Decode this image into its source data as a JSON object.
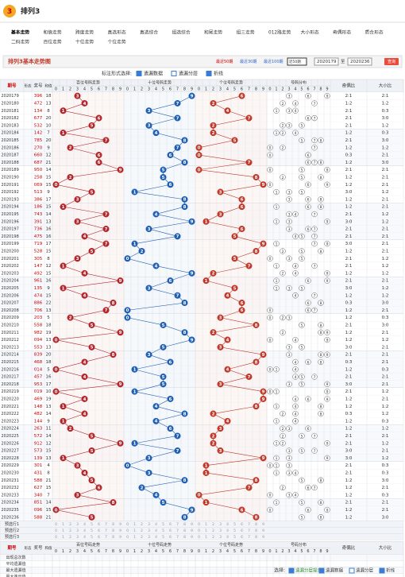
{
  "header": {
    "logo": "3",
    "title": "排列3"
  },
  "nav": {
    "row1": [
      "基本走势",
      "和值走势",
      "跨度走势",
      "直选形态",
      "直选综合",
      "组选综合",
      "和尾走势",
      "组三走势",
      "012路走势",
      "大小形态",
      "奇偶形态",
      "质合形态"
    ],
    "row2": [
      "二码走势",
      "百位走势",
      "十位走势",
      "个位走势"
    ]
  },
  "panel": {
    "title": "排列3基本走势图",
    "links": [
      "最近50期",
      "最近30期",
      "最近100期"
    ],
    "select": "近50期",
    "from": "2020179",
    "to_label": "至",
    "to": "2020236",
    "button": "查询"
  },
  "toolbar": {
    "label": "标注形式选择:",
    "options": [
      "遗漏数据",
      "遗漏分层",
      "折线"
    ]
  },
  "table": {
    "headers": {
      "issue": "期号",
      "shape": "形态",
      "number": "奖号",
      "sum": "和值",
      "groups": [
        "百位号码走势",
        "十位号码走势",
        "个位号码走势",
        "号码分布"
      ],
      "digits": [
        0,
        1,
        2,
        3,
        4,
        5,
        6,
        7,
        8,
        9
      ],
      "oe": "奇偶比",
      "bs": "大小比"
    },
    "rows": [
      {
        "issue": "2020179",
        "number": "396",
        "digits": [
          3,
          9,
          6
        ],
        "sum": 18,
        "oe": "2:1",
        "bs": "2:1"
      },
      {
        "issue": "2020180",
        "number": "472",
        "digits": [
          4,
          7,
          2
        ],
        "sum": 13,
        "oe": "1:2",
        "bs": "1:2"
      },
      {
        "issue": "2020181",
        "number": "134",
        "digits": [
          1,
          3,
          4
        ],
        "sum": 8,
        "oe": "2:1",
        "bs": "0:3"
      },
      {
        "issue": "2020182",
        "number": "677",
        "digits": [
          6,
          7,
          7
        ],
        "sum": 20,
        "oe": "2:1",
        "bs": "3:0"
      },
      {
        "issue": "2020183",
        "number": "532",
        "digits": [
          5,
          3,
          2
        ],
        "sum": 10,
        "oe": "2:1",
        "bs": "1:2"
      },
      {
        "issue": "2020184",
        "number": "142",
        "digits": [
          1,
          4,
          2
        ],
        "sum": 7,
        "oe": "1:2",
        "bs": "0:3"
      },
      {
        "issue": "2020185",
        "number": "785",
        "digits": [
          7,
          8,
          5
        ],
        "sum": 20,
        "oe": "2:1",
        "bs": "3:0"
      },
      {
        "issue": "2020186",
        "number": "270",
        "digits": [
          2,
          7,
          0
        ],
        "sum": 9,
        "oe": "1:2",
        "bs": "1:2"
      },
      {
        "issue": "2020187",
        "number": "660",
        "digits": [
          6,
          6,
          0
        ],
        "sum": 12,
        "oe": "0:3",
        "bs": "2:1"
      },
      {
        "issue": "2020188",
        "number": "687",
        "digits": [
          6,
          8,
          7
        ],
        "sum": 21,
        "oe": "1:2",
        "bs": "3:0"
      },
      {
        "issue": "2020189",
        "number": "950",
        "digits": [
          9,
          5,
          0
        ],
        "sum": 14,
        "oe": "2:1",
        "bs": "2:1"
      },
      {
        "issue": "2020190",
        "number": "258",
        "digits": [
          2,
          5,
          8
        ],
        "sum": 15,
        "oe": "1:2",
        "bs": "2:1"
      },
      {
        "issue": "2020191",
        "number": "069",
        "digits": [
          0,
          6,
          9
        ],
        "sum": 15,
        "oe": "1:2",
        "bs": "2:1"
      },
      {
        "issue": "2020192",
        "number": "513",
        "digits": [
          5,
          1,
          3
        ],
        "sum": 9,
        "oe": "3:0",
        "bs": "1:2"
      },
      {
        "issue": "2020193",
        "number": "386",
        "digits": [
          3,
          8,
          6
        ],
        "sum": 17,
        "oe": "1:2",
        "bs": "2:1"
      },
      {
        "issue": "2020194",
        "number": "186",
        "digits": [
          1,
          8,
          6
        ],
        "sum": 15,
        "oe": "1:2",
        "bs": "2:1"
      },
      {
        "issue": "2020195",
        "number": "743",
        "digits": [
          7,
          4,
          3
        ],
        "sum": 14,
        "oe": "2:1",
        "bs": "1:2"
      },
      {
        "issue": "2020196",
        "number": "391",
        "digits": [
          3,
          9,
          1
        ],
        "sum": 13,
        "oe": "3:0",
        "bs": "1:2"
      },
      {
        "issue": "2020197",
        "number": "736",
        "digits": [
          7,
          3,
          6
        ],
        "sum": 16,
        "oe": "2:1",
        "bs": "2:1"
      },
      {
        "issue": "2020198",
        "number": "475",
        "digits": [
          4,
          7,
          5
        ],
        "sum": 16,
        "oe": "2:1",
        "bs": "2:1"
      },
      {
        "issue": "2020199",
        "number": "719",
        "digits": [
          7,
          1,
          9
        ],
        "sum": 17,
        "oe": "3:0",
        "bs": "2:1"
      },
      {
        "issue": "2020200",
        "number": "528",
        "digits": [
          5,
          2,
          8
        ],
        "sum": 15,
        "oe": "1:2",
        "bs": "2:1"
      },
      {
        "issue": "2020201",
        "number": "305",
        "digits": [
          3,
          0,
          5
        ],
        "sum": 8,
        "oe": "2:1",
        "bs": "1:2"
      },
      {
        "issue": "2020202",
        "number": "147",
        "digits": [
          1,
          4,
          7
        ],
        "sum": 12,
        "oe": "2:1",
        "bs": "1:2"
      },
      {
        "issue": "2020203",
        "number": "492",
        "digits": [
          4,
          9,
          2
        ],
        "sum": 15,
        "oe": "1:2",
        "bs": "1:2"
      },
      {
        "issue": "2020204",
        "number": "961",
        "digits": [
          9,
          6,
          1
        ],
        "sum": 16,
        "oe": "2:1",
        "bs": "2:1"
      },
      {
        "issue": "2020205",
        "number": "135",
        "digits": [
          1,
          3,
          5
        ],
        "sum": 9,
        "oe": "3:0",
        "bs": "1:2"
      },
      {
        "issue": "2020206",
        "number": "474",
        "digits": [
          4,
          7,
          4
        ],
        "sum": 15,
        "oe": "1:2",
        "bs": "1:2"
      },
      {
        "issue": "2020207",
        "number": "886",
        "digits": [
          8,
          8,
          6
        ],
        "sum": 22,
        "oe": "0:3",
        "bs": "3:0"
      },
      {
        "issue": "2020208",
        "number": "706",
        "digits": [
          7,
          0,
          6
        ],
        "sum": 13,
        "oe": "1:2",
        "bs": "2:1"
      },
      {
        "issue": "2020209",
        "number": "203",
        "digits": [
          2,
          0,
          3
        ],
        "sum": 5,
        "oe": "1:2",
        "bs": "0:3"
      },
      {
        "issue": "2020210",
        "number": "558",
        "digits": [
          5,
          5,
          8
        ],
        "sum": 18,
        "oe": "2:1",
        "bs": "3:0"
      },
      {
        "issue": "2020211",
        "number": "982",
        "digits": [
          9,
          8,
          2
        ],
        "sum": 19,
        "oe": "1:2",
        "bs": "2:1"
      },
      {
        "issue": "2020212",
        "number": "094",
        "digits": [
          0,
          9,
          4
        ],
        "sum": 13,
        "oe": "1:2",
        "bs": "1:2"
      },
      {
        "issue": "2020213",
        "number": "553",
        "digits": [
          5,
          5,
          3
        ],
        "sum": 13,
        "oe": "3:0",
        "bs": "2:1"
      },
      {
        "issue": "2020214",
        "number": "839",
        "digits": [
          8,
          3,
          9
        ],
        "sum": 20,
        "oe": "2:1",
        "bs": "2:1"
      },
      {
        "issue": "2020215",
        "number": "468",
        "digits": [
          4,
          6,
          8
        ],
        "sum": 18,
        "oe": "0:3",
        "bs": "2:1"
      },
      {
        "issue": "2020216",
        "number": "014",
        "digits": [
          0,
          1,
          4
        ],
        "sum": 5,
        "oe": "1:2",
        "bs": "0:3"
      },
      {
        "issue": "2020217",
        "number": "457",
        "digits": [
          4,
          5,
          7
        ],
        "sum": 16,
        "oe": "2:1",
        "bs": "2:1"
      },
      {
        "issue": "2020218",
        "number": "953",
        "digits": [
          9,
          5,
          3
        ],
        "sum": 17,
        "oe": "3:0",
        "bs": "2:1"
      },
      {
        "issue": "2020219",
        "number": "019",
        "digits": [
          0,
          1,
          9
        ],
        "sum": 10,
        "oe": "2:1",
        "bs": "1:2"
      },
      {
        "issue": "2020220",
        "number": "469",
        "digits": [
          4,
          6,
          9
        ],
        "sum": 19,
        "oe": "1:2",
        "bs": "2:1"
      },
      {
        "issue": "2020221",
        "number": "148",
        "digits": [
          1,
          4,
          8
        ],
        "sum": 13,
        "oe": "1:2",
        "bs": "1:2"
      },
      {
        "issue": "2020222",
        "number": "482",
        "digits": [
          4,
          8,
          2
        ],
        "sum": 14,
        "oe": "0:3",
        "bs": "1:2"
      },
      {
        "issue": "2020223",
        "number": "144",
        "digits": [
          1,
          4,
          4
        ],
        "sum": 9,
        "oe": "1:2",
        "bs": "0:3"
      },
      {
        "issue": "2020224",
        "number": "263",
        "digits": [
          2,
          6,
          3
        ],
        "sum": 11,
        "oe": "1:2",
        "bs": "1:2"
      },
      {
        "issue": "2020225",
        "number": "572",
        "digits": [
          5,
          7,
          2
        ],
        "sum": 14,
        "oe": "2:1",
        "bs": "2:1"
      },
      {
        "issue": "2020226",
        "number": "912",
        "digits": [
          9,
          1,
          2
        ],
        "sum": 12,
        "oe": "2:1",
        "bs": "1:2"
      },
      {
        "issue": "2020227",
        "number": "573",
        "digits": [
          5,
          7,
          3
        ],
        "sum": 15,
        "oe": "3:0",
        "bs": "2:1"
      },
      {
        "issue": "2020228",
        "number": "139",
        "digits": [
          1,
          3,
          9
        ],
        "sum": 13,
        "oe": "3:0",
        "bs": "1:2"
      },
      {
        "issue": "2020229",
        "number": "301",
        "digits": [
          3,
          0,
          1
        ],
        "sum": 4,
        "oe": "2:1",
        "bs": "0:3"
      },
      {
        "issue": "2020230",
        "number": "431",
        "digits": [
          4,
          3,
          1
        ],
        "sum": 8,
        "oe": "2:1",
        "bs": "0:3"
      },
      {
        "issue": "2020231",
        "number": "588",
        "digits": [
          5,
          8,
          8
        ],
        "sum": 21,
        "oe": "1:2",
        "bs": "3:0"
      },
      {
        "issue": "2020232",
        "number": "627",
        "digits": [
          6,
          2,
          7
        ],
        "sum": 15,
        "oe": "1:2",
        "bs": "2:1"
      },
      {
        "issue": "2020233",
        "number": "340",
        "digits": [
          3,
          4,
          0
        ],
        "sum": 7,
        "oe": "1:2",
        "bs": "0:3"
      },
      {
        "issue": "2020234",
        "number": "851",
        "digits": [
          8,
          5,
          1
        ],
        "sum": 14,
        "oe": "2:1",
        "bs": "2:1"
      },
      {
        "issue": "2020235",
        "number": "096",
        "digits": [
          0,
          9,
          6
        ],
        "sum": 15,
        "oe": "1:2",
        "bs": "2:1"
      },
      {
        "issue": "2020236",
        "number": "588",
        "digits": [
          5,
          8,
          8
        ],
        "sum": 21,
        "oe": "1:2",
        "bs": "3:0"
      }
    ],
    "preselect": [
      "预选行1",
      "预选行2",
      "预选行3"
    ],
    "stats": [
      "出现总次数",
      "平均遗漏值",
      "最大遗漏值",
      "最大连出值"
    ]
  },
  "legend": {
    "label": "选择:",
    "options": [
      "遗漏分层提示",
      "遗漏数据",
      "遗漏分层",
      "折线"
    ]
  }
}
